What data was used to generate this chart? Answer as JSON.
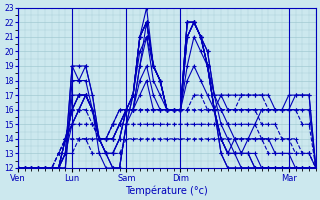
{
  "xlabel": "Température (°c)",
  "ylim": [
    12,
    23
  ],
  "yticks": [
    12,
    13,
    14,
    15,
    16,
    17,
    18,
    19,
    20,
    21,
    22,
    23
  ],
  "background_color": "#cce8ee",
  "grid_color": "#99c4cc",
  "line_color": "#0000bb",
  "x_day_labels": [
    "Ven",
    "Lun",
    "Sam",
    "Dim",
    "Mar"
  ],
  "x_day_positions": [
    0,
    8,
    16,
    24,
    40
  ],
  "xlim": [
    0,
    44
  ],
  "n_points": 45,
  "series": [
    [
      12,
      12,
      12,
      12,
      12,
      12,
      12,
      12,
      17,
      17,
      17,
      16,
      13,
      12,
      12,
      12,
      15,
      16,
      19,
      22,
      19,
      18,
      16,
      16,
      16,
      22,
      22,
      21,
      19,
      16,
      14,
      13,
      13,
      13,
      13,
      12,
      12,
      12,
      12,
      12,
      12,
      12,
      12,
      12,
      12
    ],
    [
      12,
      12,
      12,
      12,
      12,
      12,
      12,
      12,
      18,
      18,
      19,
      17,
      14,
      13,
      12,
      12,
      15,
      17,
      20,
      21,
      19,
      18,
      16,
      16,
      16,
      21,
      22,
      21,
      19,
      16,
      14,
      13,
      13,
      13,
      13,
      12,
      12,
      12,
      12,
      12,
      12,
      12,
      12,
      12,
      12
    ],
    [
      12,
      12,
      12,
      12,
      12,
      12,
      12,
      13,
      19,
      19,
      19,
      17,
      14,
      13,
      12,
      12,
      15,
      17,
      21,
      22,
      19,
      18,
      16,
      16,
      16,
      21,
      22,
      21,
      19,
      16,
      14,
      13,
      13,
      12,
      12,
      12,
      12,
      12,
      12,
      12,
      12,
      12,
      12,
      12,
      12
    ],
    [
      12,
      12,
      12,
      12,
      12,
      12,
      12,
      13,
      19,
      18,
      18,
      16,
      14,
      13,
      13,
      14,
      16,
      17,
      21,
      22,
      19,
      18,
      16,
      16,
      16,
      21,
      22,
      21,
      19,
      16,
      14,
      13,
      14,
      13,
      14,
      15,
      16,
      16,
      16,
      16,
      16,
      17,
      17,
      17,
      12
    ],
    [
      12,
      12,
      12,
      12,
      12,
      12,
      12,
      13,
      15,
      16,
      17,
      16,
      14,
      13,
      13,
      14,
      16,
      17,
      21,
      22,
      19,
      18,
      16,
      16,
      16,
      22,
      22,
      21,
      19,
      16,
      13,
      12,
      12,
      12,
      12,
      12,
      12,
      12,
      12,
      12,
      12,
      12,
      12,
      12,
      12
    ],
    [
      12,
      12,
      12,
      12,
      12,
      12,
      12,
      14,
      15,
      16,
      17,
      16,
      14,
      13,
      13,
      14,
      16,
      17,
      21,
      23,
      19,
      18,
      16,
      16,
      16,
      22,
      22,
      21,
      19,
      16,
      13,
      12,
      12,
      12,
      12,
      12,
      12,
      12,
      12,
      12,
      12,
      12,
      12,
      12,
      12
    ],
    [
      12,
      12,
      12,
      12,
      12,
      12,
      12,
      14,
      15,
      16,
      17,
      16,
      14,
      14,
      14,
      15,
      16,
      17,
      21,
      22,
      19,
      18,
      16,
      16,
      16,
      22,
      22,
      21,
      20,
      17,
      15,
      14,
      13,
      13,
      13,
      13,
      12,
      12,
      12,
      12,
      12,
      12,
      12,
      12,
      12
    ],
    [
      12,
      12,
      12,
      12,
      12,
      12,
      12,
      14,
      16,
      17,
      17,
      16,
      14,
      14,
      14,
      15,
      16,
      16,
      19,
      21,
      18,
      17,
      16,
      16,
      16,
      21,
      22,
      21,
      20,
      17,
      16,
      15,
      14,
      14,
      14,
      14,
      14,
      14,
      13,
      13,
      13,
      12,
      12,
      12,
      12
    ],
    [
      12,
      12,
      12,
      12,
      12,
      12,
      12,
      14,
      16,
      17,
      17,
      16,
      14,
      14,
      14,
      15,
      16,
      16,
      18,
      19,
      17,
      16,
      16,
      16,
      16,
      19,
      21,
      20,
      19,
      17,
      17,
      16,
      16,
      16,
      16,
      16,
      16,
      16,
      16,
      16,
      17,
      17,
      17,
      17,
      12
    ],
    [
      12,
      12,
      12,
      12,
      12,
      12,
      12,
      14,
      16,
      17,
      17,
      16,
      14,
      14,
      15,
      16,
      16,
      16,
      17,
      18,
      16,
      16,
      16,
      16,
      16,
      18,
      19,
      18,
      17,
      16,
      17,
      17,
      17,
      17,
      17,
      17,
      17,
      17,
      16,
      16,
      16,
      16,
      16,
      16,
      12
    ],
    [
      12,
      12,
      12,
      12,
      12,
      12,
      13,
      14,
      16,
      16,
      16,
      15,
      14,
      14,
      15,
      16,
      16,
      16,
      16,
      16,
      16,
      16,
      16,
      16,
      16,
      16,
      17,
      17,
      16,
      16,
      16,
      16,
      16,
      17,
      17,
      17,
      17,
      16,
      16,
      16,
      16,
      16,
      15,
      15,
      12
    ],
    [
      12,
      12,
      12,
      12,
      12,
      12,
      13,
      14,
      15,
      15,
      15,
      15,
      14,
      14,
      15,
      15,
      16,
      16,
      16,
      16,
      16,
      16,
      16,
      16,
      16,
      16,
      16,
      16,
      16,
      16,
      16,
      16,
      16,
      16,
      16,
      16,
      15,
      15,
      15,
      14,
      14,
      14,
      13,
      13,
      12
    ],
    [
      12,
      12,
      12,
      12,
      12,
      12,
      13,
      14,
      14,
      14,
      14,
      14,
      14,
      14,
      14,
      15,
      15,
      15,
      15,
      15,
      15,
      15,
      15,
      15,
      15,
      15,
      15,
      15,
      15,
      15,
      15,
      15,
      15,
      15,
      15,
      15,
      14,
      14,
      14,
      14,
      14,
      13,
      13,
      13,
      12
    ],
    [
      12,
      12,
      12,
      12,
      12,
      12,
      12,
      13,
      13,
      14,
      14,
      13,
      13,
      13,
      13,
      13,
      14,
      14,
      14,
      14,
      14,
      14,
      14,
      14,
      14,
      14,
      14,
      14,
      14,
      14,
      14,
      14,
      14,
      14,
      14,
      14,
      14,
      13,
      13,
      13,
      13,
      13,
      13,
      13,
      12
    ]
  ],
  "series_styles": [
    {
      "ls": "-",
      "lw": 0.8
    },
    {
      "ls": "-",
      "lw": 0.8
    },
    {
      "ls": "-",
      "lw": 0.8
    },
    {
      "ls": "-",
      "lw": 0.8
    },
    {
      "ls": "-",
      "lw": 0.8
    },
    {
      "ls": "-",
      "lw": 0.8
    },
    {
      "ls": "-",
      "lw": 0.8
    },
    {
      "ls": "-",
      "lw": 0.8
    },
    {
      "ls": "-",
      "lw": 0.8
    },
    {
      "ls": "-",
      "lw": 0.8
    },
    {
      "ls": "--",
      "lw": 0.8
    },
    {
      "ls": "--",
      "lw": 0.8
    },
    {
      "ls": "--",
      "lw": 0.8
    },
    {
      "ls": "--",
      "lw": 0.8
    }
  ]
}
